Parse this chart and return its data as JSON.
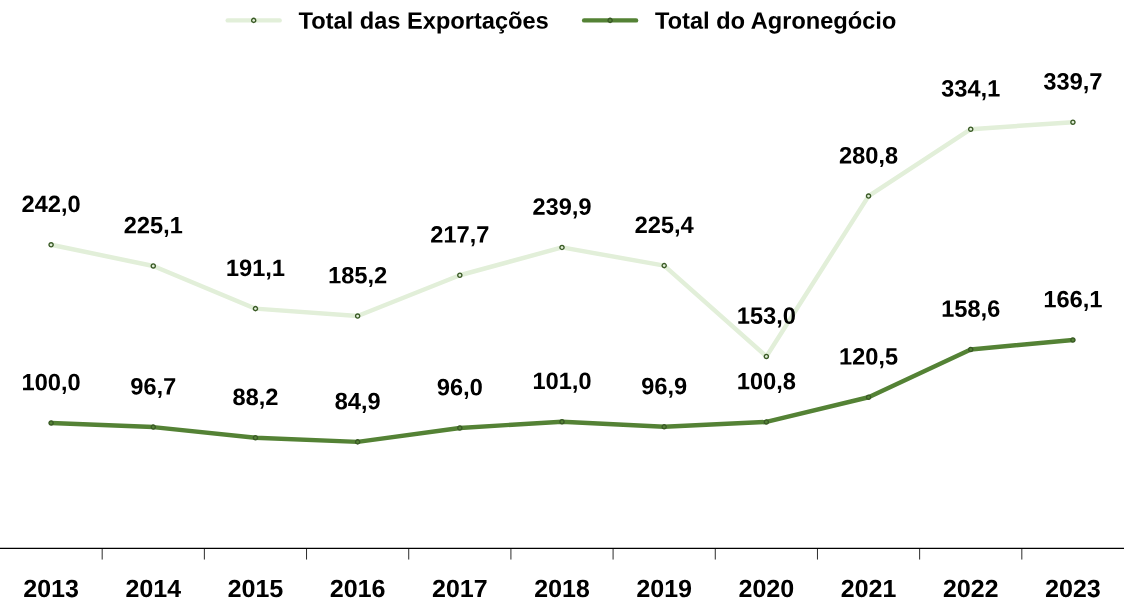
{
  "chart_data": {
    "type": "line",
    "categories": [
      "2013",
      "2014",
      "2015",
      "2016",
      "2017",
      "2018",
      "2019",
      "2020",
      "2021",
      "2022",
      "2023"
    ],
    "series": [
      {
        "name": "Total das Exportações",
        "color": "#e2efd9",
        "values": [
          242.0,
          225.1,
          191.1,
          185.2,
          217.7,
          239.9,
          225.4,
          153.0,
          280.8,
          334.1,
          339.7
        ],
        "value_labels": [
          "242,0",
          "225,1",
          "191,1",
          "185,2",
          "217,7",
          "239,9",
          "225,4",
          "153,0",
          "280,8",
          "334,1",
          "339,7"
        ]
      },
      {
        "name": "Total do Agronegócio",
        "color": "#548235",
        "values": [
          100.0,
          96.7,
          88.2,
          84.9,
          96.0,
          101.0,
          96.9,
          100.8,
          120.5,
          158.6,
          166.1
        ],
        "value_labels": [
          "100,0",
          "96,7",
          "88,2",
          "84,9",
          "96,0",
          "101,0",
          "96,9",
          "100,8",
          "120,5",
          "158,6",
          "166,1"
        ]
      }
    ],
    "legend": "top",
    "marker": "circle",
    "line_style": "solid",
    "tick_labels": "x"
  }
}
